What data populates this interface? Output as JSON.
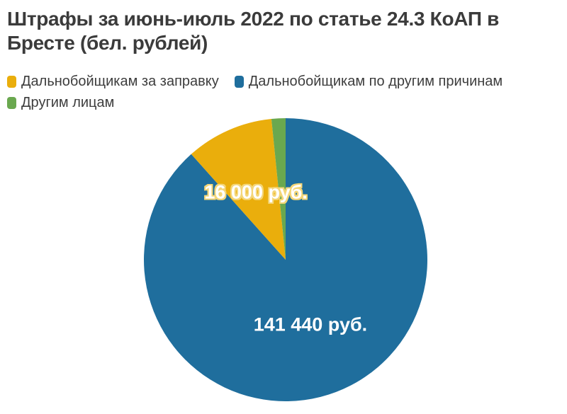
{
  "header": {
    "title_lines": [
      "Штрафы за июнь-июль 2022 по статье 24.3 КоАП в",
      "Бресте (бел. рублей)"
    ]
  },
  "legend": {
    "items": [
      {
        "label": "Дальнобойщикам за заправку",
        "color": "#EAAE0C"
      },
      {
        "label": "Дальнобойщикам по другим причинам",
        "color": "#1F6E9D"
      },
      {
        "label": "Другим лицам",
        "color": "#6AA84F"
      }
    ]
  },
  "chart_data": {
    "type": "pie",
    "title": "Штрафы за июнь-июль 2022 по статье 24.3 КоАП в Бресте (бел. рублей)",
    "unit": "бел. рублей (руб.)",
    "start_angle_deg": 0,
    "direction": "clockwise",
    "legend_position": "top-left",
    "slices": [
      {
        "name": "Дальнобойщикам по другим причинам",
        "value": 141440,
        "label": "141 440 руб.",
        "color": "#1F6E9D",
        "label_color": "#FFFFFF"
      },
      {
        "name": "Дальнобойщикам за заправку",
        "value": 16000,
        "label": "16 000 руб.",
        "color": "#EAAE0C",
        "label_color": "#FFFFFF",
        "label_halo": "#F4D678"
      },
      {
        "name": "Другим лицам",
        "value": 2560,
        "label": "",
        "color": "#6AA84F",
        "value_estimated": true
      }
    ]
  },
  "colors": {
    "background": "#FFFFFF",
    "title_text": "#3B3B3B",
    "legend_text": "#3D3D3D"
  }
}
